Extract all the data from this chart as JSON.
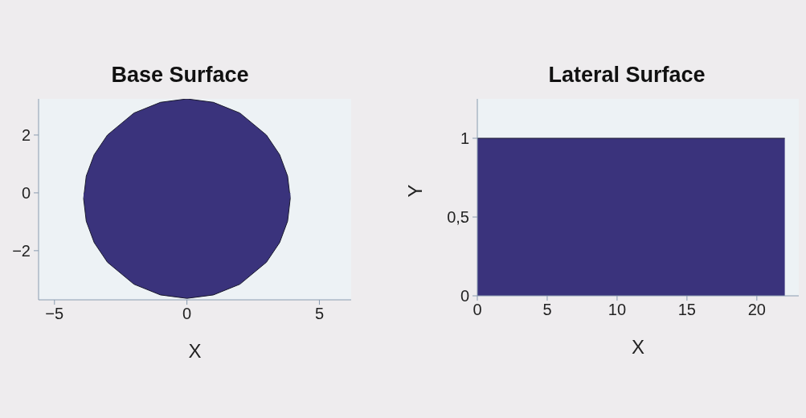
{
  "chart_data": [
    {
      "type": "area",
      "title": "Base Surface",
      "xlabel": "X",
      "xlim": [
        -5.6,
        6.2
      ],
      "xticks": [
        -5,
        0,
        5
      ],
      "ylim": [
        -3.7,
        3.25
      ],
      "yticks": [
        -2,
        0,
        2
      ],
      "series": [
        {
          "color": "#3a337c",
          "x": [
            -3.9,
            -3.8,
            -3.5,
            -3,
            -2,
            -1,
            0,
            1,
            2,
            3,
            3.5,
            3.8,
            3.9
          ],
          "values": [
            -0.2,
            0.58,
            1.32,
            2.0,
            2.76,
            3.13,
            3.25,
            3.13,
            2.76,
            2.0,
            1.32,
            0.58,
            -0.2
          ]
        },
        {
          "color": "#3a337c",
          "x": [
            -3.9,
            -3.8,
            -3.5,
            -3,
            -2,
            -1,
            0,
            1,
            2,
            3,
            3.5,
            3.8,
            3.9
          ],
          "values": [
            -0.2,
            -0.98,
            -1.72,
            -2.4,
            -3.16,
            -3.53,
            -3.65,
            -3.53,
            -3.16,
            -2.4,
            -1.72,
            -0.98,
            -0.2
          ]
        }
      ]
    },
    {
      "type": "area",
      "title": "Lateral Surface",
      "xlabel": "X",
      "ylabel": "Y",
      "xlim": [
        0,
        23
      ],
      "xticks": [
        0,
        5,
        10,
        15,
        20
      ],
      "ylim": [
        0,
        1.25
      ],
      "yticks": [
        0,
        {
          "value": 0.5,
          "label": "0,5"
        },
        1
      ],
      "series": [
        {
          "color": "#3a337c",
          "x": [
            0,
            22
          ],
          "values": [
            1,
            1
          ]
        }
      ]
    }
  ]
}
